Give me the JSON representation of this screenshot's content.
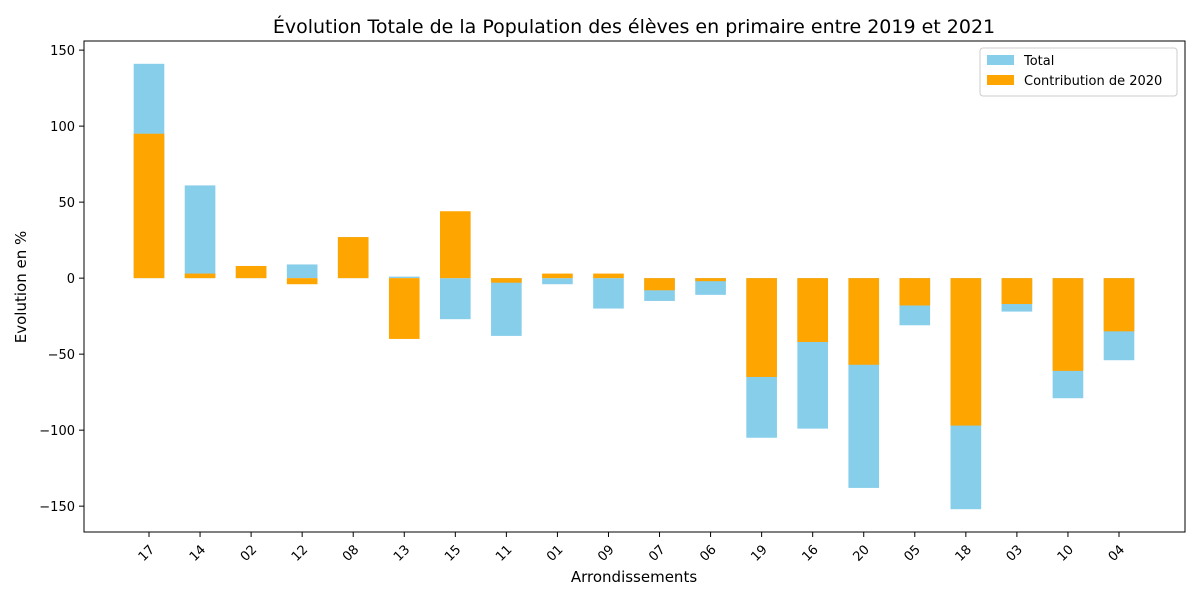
{
  "chart_data": {
    "type": "bar",
    "title": "Évolution Totale de la Population des élèves en primaire entre 2019 et 2021",
    "xlabel": "Arrondissements",
    "ylabel": "Evolution en %",
    "ylim": [
      -167,
      156
    ],
    "yticks": [
      -150,
      -100,
      -50,
      0,
      50,
      100,
      150
    ],
    "ytick_labels": [
      "−150",
      "−100",
      "−50",
      "0",
      "50",
      "100",
      "150"
    ],
    "legend_position": "top-right",
    "categories": [
      "17",
      "14",
      "02",
      "12",
      "08",
      "13",
      "15",
      "11",
      "01",
      "09",
      "07",
      "06",
      "19",
      "16",
      "20",
      "05",
      "18",
      "03",
      "10",
      "04"
    ],
    "series": [
      {
        "name": "Total",
        "color": "#87ceeb",
        "values": [
          141,
          61,
          8,
          9,
          27,
          1,
          -27,
          -38,
          -4,
          -20,
          -15,
          -11,
          -105,
          -99,
          -138,
          -31,
          -152,
          -22,
          -79,
          -54
        ]
      },
      {
        "name": "Contribution de 2020",
        "color": "#ffa500",
        "values": [
          95,
          3,
          8,
          -4,
          27,
          -40,
          44,
          -3,
          3,
          3,
          -8,
          -2,
          -65,
          -42,
          -57,
          -18,
          -97,
          -17,
          -61,
          -35
        ]
      }
    ]
  }
}
